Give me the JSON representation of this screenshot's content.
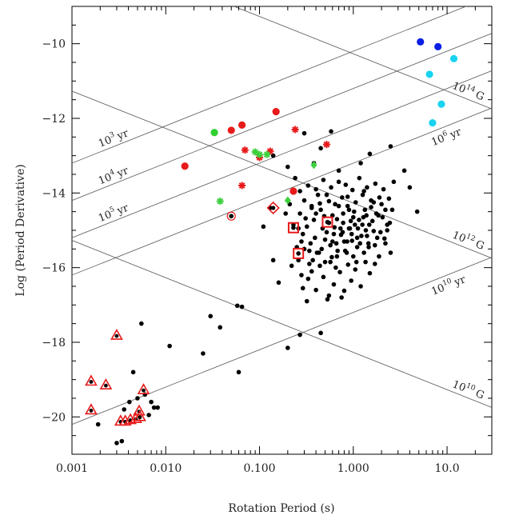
{
  "chart_data": {
    "type": "scatter",
    "title": "",
    "xlabel": "Rotation Period (s)",
    "ylabel": "Log (Period Derivative)",
    "x_scale": "log",
    "xlim": [
      0.001,
      30
    ],
    "ylim": [
      -21,
      -9
    ],
    "x_ticks": [
      {
        "value": 0.001,
        "label": "0.001"
      },
      {
        "value": 0.01,
        "label": "0.010"
      },
      {
        "value": 0.1,
        "label": "0.100"
      },
      {
        "value": 1,
        "label": "1.000"
      },
      {
        "value": 10,
        "label": "10.0"
      }
    ],
    "y_ticks": [
      {
        "value": -10,
        "label": "−10"
      },
      {
        "value": -12,
        "label": "−12"
      },
      {
        "value": -14,
        "label": "−14"
      },
      {
        "value": -16,
        "label": "−16"
      },
      {
        "value": -18,
        "label": "−18"
      },
      {
        "value": -20,
        "label": "−20"
      }
    ],
    "guide_lines": [
      {
        "label": "10",
        "sup": "14",
        "unit": "G",
        "slope": -1,
        "intercept": -10.27
      },
      {
        "label": "10",
        "sup": "12",
        "unit": "G",
        "slope": -1,
        "intercept": -14.27
      },
      {
        "label": "10",
        "sup": "10",
        "unit": "G",
        "slope": -1,
        "intercept": -18.27
      },
      {
        "label": "10",
        "sup": "3",
        "unit": "yr",
        "slope": 1,
        "intercept": -10.2
      },
      {
        "label": "10",
        "sup": "4",
        "unit": "yr",
        "slope": 1,
        "intercept": -11.2
      },
      {
        "label": "10",
        "sup": "5",
        "unit": "yr",
        "slope": 1,
        "intercept": -12.2
      },
      {
        "label": "10",
        "sup": "6",
        "unit": "yr",
        "slope": 1,
        "intercept": -13.2
      },
      {
        "label": "10",
        "sup": "10",
        "unit": "yr",
        "slope": 1,
        "intercept": -17.2
      }
    ],
    "series": [
      {
        "marker": "blue-circle",
        "color": "#0a1ee6",
        "points": [
          [
            5.2,
            -9.95
          ],
          [
            8.0,
            -10.08
          ]
        ]
      },
      {
        "marker": "cyan-circle",
        "color": "#19d3f0",
        "points": [
          [
            11.8,
            -10.4
          ],
          [
            6.5,
            -10.82
          ],
          [
            8.7,
            -11.62
          ],
          [
            7.0,
            -12.12
          ]
        ]
      },
      {
        "marker": "red-circle",
        "color": "#e81a1a",
        "points": [
          [
            0.016,
            -13.28
          ],
          [
            0.05,
            -12.32
          ],
          [
            0.065,
            -12.18
          ],
          [
            0.15,
            -11.82
          ],
          [
            0.23,
            -13.95
          ]
        ]
      },
      {
        "marker": "green-circle",
        "color": "#2fd12f",
        "points": [
          [
            0.033,
            -12.38
          ]
        ]
      },
      {
        "marker": "red-asterisk",
        "color": "#e81a1a",
        "points": [
          [
            0.07,
            -12.85
          ],
          [
            0.1,
            -13.05
          ],
          [
            0.13,
            -12.88
          ],
          [
            0.24,
            -12.3
          ],
          [
            0.52,
            -12.7
          ],
          [
            0.065,
            -13.8
          ]
        ]
      },
      {
        "marker": "green-asterisk",
        "color": "#3ed13e",
        "points": [
          [
            0.038,
            -14.22
          ],
          [
            0.09,
            -12.9
          ],
          [
            0.1,
            -12.97
          ],
          [
            0.12,
            -12.97
          ]
        ]
      },
      {
        "marker": "green-diamond",
        "color": "#3ed13e",
        "points": [
          [
            0.2,
            -14.2
          ],
          [
            0.38,
            -13.25
          ]
        ]
      },
      {
        "marker": "circled-dot",
        "color": "#e81a1a",
        "points": [
          [
            0.05,
            -14.62
          ]
        ]
      },
      {
        "marker": "boxed-dot",
        "color": "#e81a1a",
        "points": [
          [
            0.53,
            -14.78
          ],
          [
            0.23,
            -14.93
          ],
          [
            0.26,
            -15.62
          ]
        ]
      },
      {
        "marker": "diamond-dot",
        "color": "#e81a1a",
        "points": [
          [
            0.14,
            -14.4
          ]
        ]
      },
      {
        "marker": "triangle-dot",
        "color": "#e81a1a",
        "points": [
          [
            0.0016,
            -19.05
          ],
          [
            0.0016,
            -19.82
          ],
          [
            0.0023,
            -19.15
          ],
          [
            0.003,
            -17.82
          ],
          [
            0.0033,
            -20.12
          ],
          [
            0.0037,
            -20.12
          ],
          [
            0.0042,
            -20.08
          ],
          [
            0.0048,
            -20.05
          ],
          [
            0.0052,
            -19.85
          ],
          [
            0.0053,
            -20.0
          ],
          [
            0.0058,
            -19.28
          ]
        ]
      },
      {
        "marker": "black-dot",
        "color": "#000000",
        "points": [
          [
            0.0019,
            -20.2
          ],
          [
            0.003,
            -20.7
          ],
          [
            0.0034,
            -20.65
          ],
          [
            0.0036,
            -19.8
          ],
          [
            0.0041,
            -19.6
          ],
          [
            0.0045,
            -18.8
          ],
          [
            0.005,
            -19.5
          ],
          [
            0.0055,
            -17.5
          ],
          [
            0.006,
            -19.4
          ],
          [
            0.0066,
            -19.95
          ],
          [
            0.007,
            -19.6
          ],
          [
            0.0075,
            -19.75
          ],
          [
            0.0082,
            -19.75
          ],
          [
            0.011,
            -18.1
          ],
          [
            0.025,
            -18.3
          ],
          [
            0.03,
            -17.3
          ],
          [
            0.038,
            -17.6
          ],
          [
            0.058,
            -17.02
          ],
          [
            0.06,
            -18.8
          ],
          [
            0.065,
            -17.05
          ],
          [
            0.14,
            -15.8
          ],
          [
            0.16,
            -16.4
          ],
          [
            0.2,
            -18.15
          ],
          [
            0.27,
            -17.8
          ],
          [
            0.45,
            -17.75
          ],
          [
            0.05,
            -14.62
          ],
          [
            0.11,
            -14.9
          ],
          [
            0.13,
            -14.4
          ],
          [
            0.14,
            -13.0
          ],
          [
            0.2,
            -13.3
          ],
          [
            0.3,
            -12.4
          ],
          [
            0.45,
            -12.8
          ],
          [
            0.58,
            -12.35
          ],
          [
            0.38,
            -13.2
          ],
          [
            0.7,
            -13.4
          ],
          [
            1.2,
            -13.2
          ],
          [
            1.5,
            -12.95
          ],
          [
            2.5,
            -12.75
          ],
          [
            3.5,
            -13.4
          ],
          [
            4.0,
            -13.85
          ],
          [
            4.8,
            -14.5
          ],
          [
            0.26,
            -14.95
          ],
          [
            0.28,
            -15.3
          ],
          [
            0.31,
            -14.68
          ],
          [
            0.34,
            -15.9
          ],
          [
            0.36,
            -14.4
          ],
          [
            0.39,
            -15.2
          ],
          [
            0.42,
            -14.05
          ],
          [
            0.46,
            -15.5
          ],
          [
            0.49,
            -14.62
          ],
          [
            0.52,
            -15.05
          ],
          [
            0.55,
            -14.22
          ],
          [
            0.59,
            -15.72
          ],
          [
            0.63,
            -14.92
          ],
          [
            0.66,
            -15.35
          ],
          [
            0.7,
            -14.35
          ],
          [
            0.74,
            -15.12
          ],
          [
            0.78,
            -14.8
          ],
          [
            0.82,
            -15.55
          ],
          [
            0.87,
            -14.1
          ],
          [
            0.92,
            -14.95
          ],
          [
            0.97,
            -15.28
          ],
          [
            1.02,
            -14.5
          ],
          [
            1.08,
            -15.85
          ],
          [
            1.15,
            -14.72
          ],
          [
            1.22,
            -15.15
          ],
          [
            1.3,
            -13.95
          ],
          [
            1.38,
            -14.6
          ],
          [
            1.46,
            -15.45
          ],
          [
            1.55,
            -14.38
          ],
          [
            1.65,
            -15.02
          ],
          [
            1.76,
            -14.55
          ],
          [
            1.88,
            -15.7
          ],
          [
            2.0,
            -14.3
          ],
          [
            2.15,
            -15.22
          ],
          [
            2.3,
            -14.85
          ],
          [
            2.5,
            -15.6
          ],
          [
            0.3,
            -15.5
          ],
          [
            0.33,
            -16.3
          ],
          [
            0.37,
            -15.8
          ],
          [
            0.4,
            -16.6
          ],
          [
            0.44,
            -15.95
          ],
          [
            0.48,
            -16.25
          ],
          [
            0.53,
            -16.85
          ],
          [
            0.57,
            -15.85
          ],
          [
            0.62,
            -16.45
          ],
          [
            0.67,
            -15.7
          ],
          [
            0.72,
            -16.12
          ],
          [
            0.8,
            -16.62
          ],
          [
            0.88,
            -15.92
          ],
          [
            0.95,
            -16.35
          ],
          [
            1.05,
            -16.05
          ],
          [
            1.2,
            -16.5
          ],
          [
            1.35,
            -15.85
          ],
          [
            1.5,
            -16.15
          ],
          [
            1.7,
            -15.9
          ],
          [
            0.32,
            -16.9
          ],
          [
            0.55,
            -16.75
          ],
          [
            0.75,
            -16.8
          ],
          [
            0.29,
            -16.55
          ],
          [
            0.36,
            -16.1
          ],
          [
            0.24,
            -13.6
          ],
          [
            0.27,
            -13.95
          ],
          [
            0.3,
            -14.2
          ],
          [
            0.33,
            -13.8
          ],
          [
            0.36,
            -14.35
          ],
          [
            0.4,
            -13.9
          ],
          [
            0.44,
            -14.28
          ],
          [
            0.48,
            -13.65
          ],
          [
            0.52,
            -14.05
          ],
          [
            0.58,
            -13.85
          ],
          [
            0.64,
            -14.3
          ],
          [
            0.7,
            -13.7
          ],
          [
            0.76,
            -14.12
          ],
          [
            0.83,
            -13.78
          ],
          [
            0.9,
            -14.45
          ],
          [
            0.98,
            -13.92
          ],
          [
            1.06,
            -14.25
          ],
          [
            1.16,
            -13.6
          ],
          [
            1.26,
            -14.05
          ],
          [
            1.4,
            -13.85
          ],
          [
            1.55,
            -14.2
          ],
          [
            1.72,
            -13.75
          ],
          [
            1.9,
            -14.12
          ],
          [
            2.1,
            -13.9
          ],
          [
            2.4,
            -14.15
          ],
          [
            2.7,
            -13.7
          ],
          [
            0.19,
            -14.55
          ],
          [
            0.21,
            -14.3
          ],
          [
            0.23,
            -14.85
          ],
          [
            0.25,
            -15.45
          ],
          [
            0.27,
            -14.55
          ],
          [
            0.29,
            -15.1
          ],
          [
            0.32,
            -14.9
          ],
          [
            0.35,
            -15.35
          ],
          [
            0.38,
            -14.72
          ],
          [
            0.41,
            -15.6
          ],
          [
            0.45,
            -14.45
          ],
          [
            0.5,
            -15.25
          ],
          [
            0.6,
            -14.6
          ],
          [
            0.68,
            -15.55
          ],
          [
            0.78,
            -14.55
          ],
          [
            0.86,
            -15.3
          ],
          [
            0.94,
            -14.75
          ],
          [
            1.1,
            -15.45
          ],
          [
            1.25,
            -14.85
          ],
          [
            1.45,
            -15.35
          ],
          [
            1.6,
            -14.75
          ],
          [
            1.8,
            -15.2
          ],
          [
            2.05,
            -14.65
          ],
          [
            2.3,
            -15.0
          ],
          [
            2.6,
            -14.45
          ],
          [
            0.22,
            -15.95
          ],
          [
            0.26,
            -15.8
          ],
          [
            0.28,
            -16.2
          ],
          [
            0.34,
            -15.55
          ],
          [
            0.43,
            -15.6
          ],
          [
            0.5,
            -15.85
          ],
          [
            0.6,
            -15.3
          ],
          [
            0.65,
            -16.0
          ],
          [
            0.85,
            -15.6
          ],
          [
            1.0,
            -15.7
          ],
          [
            1.1,
            -15.2
          ],
          [
            1.3,
            -15.6
          ],
          [
            1.4,
            -15.15
          ],
          [
            1.7,
            -15.4
          ],
          [
            1.95,
            -15.05
          ],
          [
            2.2,
            -15.35
          ],
          [
            0.4,
            -14.55
          ],
          [
            0.55,
            -14.8
          ],
          [
            0.62,
            -15.1
          ],
          [
            0.73,
            -14.95
          ],
          [
            0.8,
            -15.3
          ],
          [
            0.9,
            -14.95
          ],
          [
            1.0,
            -14.65
          ],
          [
            1.12,
            -14.95
          ],
          [
            1.33,
            -14.45
          ],
          [
            1.48,
            -14.85
          ],
          [
            1.65,
            -14.25
          ],
          [
            1.85,
            -14.6
          ],
          [
            2.2,
            -14.45
          ],
          [
            2.45,
            -14.8
          ],
          [
            0.47,
            -14.95
          ],
          [
            0.57,
            -15.4
          ],
          [
            0.67,
            -14.7
          ],
          [
            0.77,
            -15.05
          ],
          [
            0.87,
            -14.35
          ],
          [
            0.96,
            -15.1
          ],
          [
            1.04,
            -14.85
          ],
          [
            1.18,
            -15.35
          ],
          [
            1.28,
            -14.65
          ],
          [
            1.36,
            -15.0
          ]
        ]
      }
    ]
  }
}
